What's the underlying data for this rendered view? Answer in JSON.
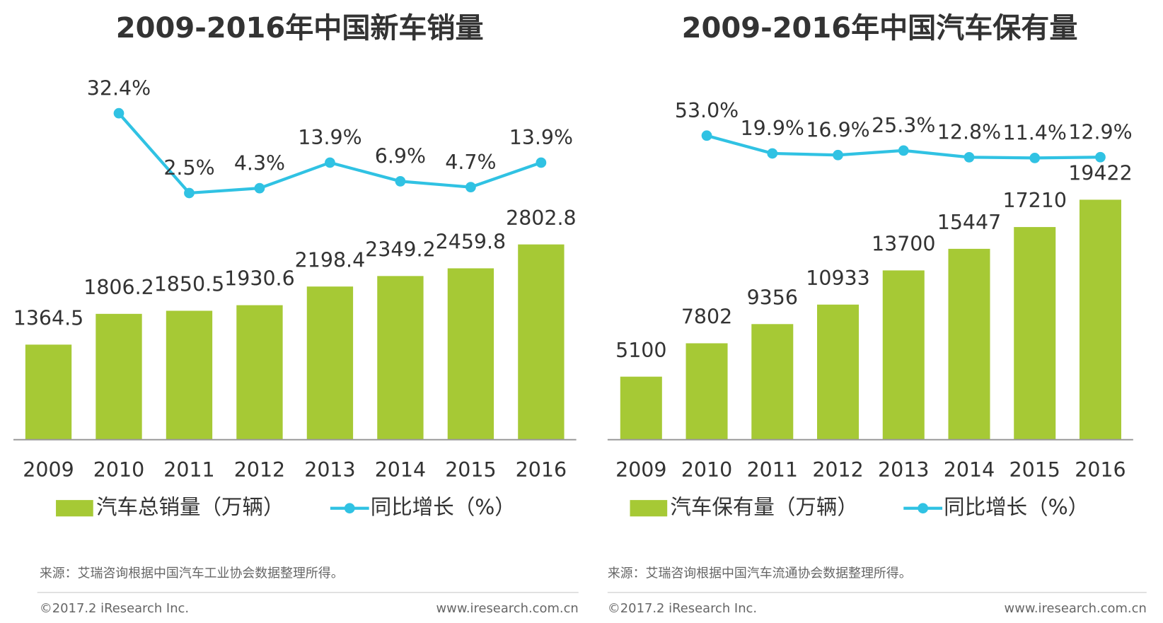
{
  "chart_data": [
    {
      "type": "bar",
      "title": "2009-2016年中国新车销量",
      "categories": [
        "2009",
        "2010",
        "2011",
        "2012",
        "2013",
        "2014",
        "2015",
        "2016"
      ],
      "series": [
        {
          "name": "汽车总销量（万辆）",
          "type": "bar",
          "color": "#a6c935",
          "values": [
            1364.5,
            1806.2,
            1850.5,
            1930.6,
            2198.4,
            2349.2,
            2459.8,
            2802.8
          ]
        },
        {
          "name": "同比增长（%）",
          "type": "line",
          "color": "#30c2e3",
          "values": [
            null,
            32.4,
            2.5,
            4.3,
            13.9,
            6.9,
            4.7,
            13.9
          ],
          "value_labels": [
            null,
            "32.4%",
            "2.5%",
            "4.3%",
            "13.9%",
            "6.9%",
            "4.7%",
            "13.9%"
          ]
        }
      ],
      "source": "来源：艾瑞咨询根据中国汽车工业协会数据整理所得。",
      "copyright": "©2017.2 iResearch Inc.",
      "website": "www.iresearch.com.cn"
    },
    {
      "type": "bar",
      "title": "2009-2016年中国汽车保有量",
      "categories": [
        "2009",
        "2010",
        "2011",
        "2012",
        "2013",
        "2014",
        "2015",
        "2016"
      ],
      "series": [
        {
          "name": "汽车保有量（万辆）",
          "type": "bar",
          "color": "#a6c935",
          "values": [
            5100,
            7802,
            9356,
            10933,
            13700,
            15447,
            17210,
            19422
          ]
        },
        {
          "name": "同比增长（%）",
          "type": "line",
          "color": "#30c2e3",
          "values": [
            null,
            53.0,
            19.9,
            16.9,
            25.3,
            12.8,
            11.4,
            12.9
          ],
          "value_labels": [
            null,
            "53.0%",
            "19.9%",
            "16.9%",
            "25.3%",
            "12.8%",
            "11.4%",
            "12.9%"
          ]
        }
      ],
      "source": "来源：艾瑞咨询根据中国汽车流通协会数据整理所得。",
      "copyright": "©2017.2 iResearch Inc.",
      "website": "www.iresearch.com.cn"
    }
  ]
}
